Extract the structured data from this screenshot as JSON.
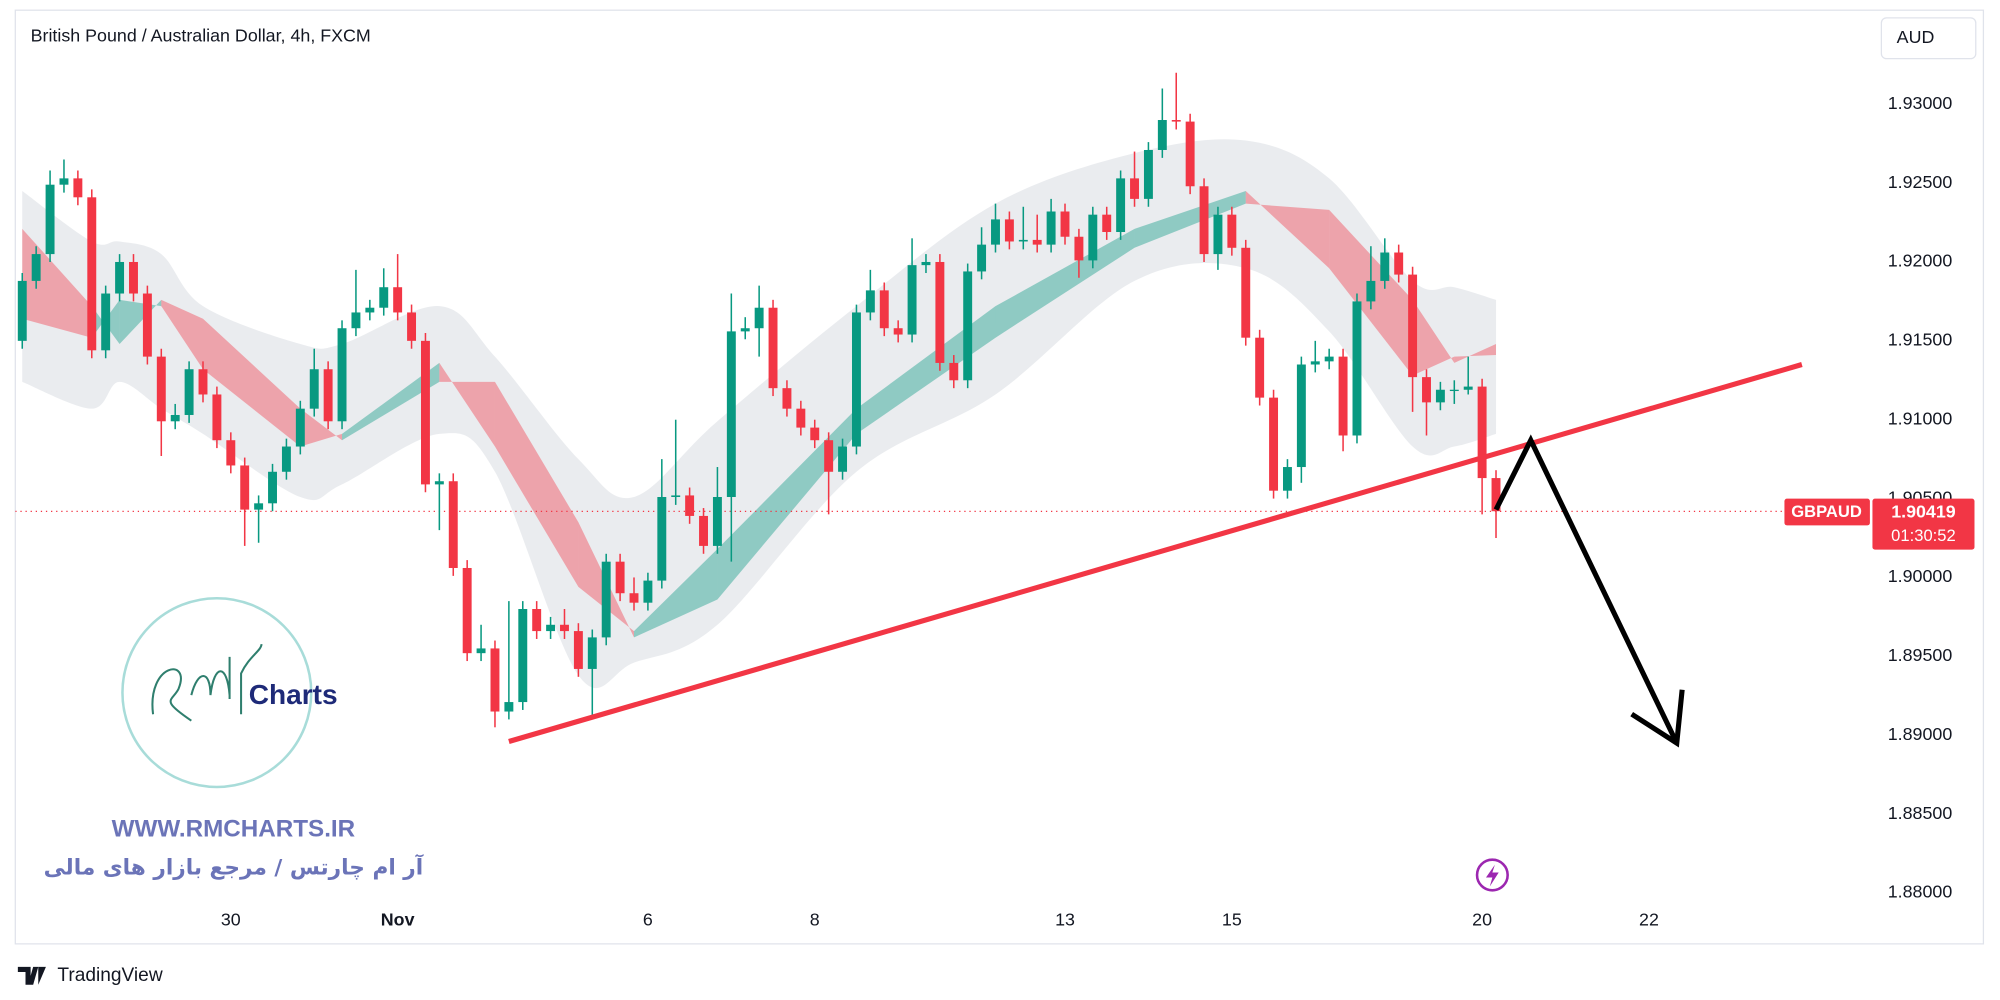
{
  "chart_data": {
    "type": "candlestick",
    "title": "British Pound / Australian Dollar, 4h, FXCM",
    "currency": "AUD",
    "symbol": "GBPAUD",
    "last_price": 1.90419,
    "countdown": "01:30:52",
    "up_color": "#089981",
    "down_color": "#f23645",
    "ylim": [
      1.8796,
      1.9358
    ],
    "yticks": [
      {
        "value": 1.88,
        "label": "1.88000"
      },
      {
        "value": 1.885,
        "label": "1.88500"
      },
      {
        "value": 1.89,
        "label": "1.89000"
      },
      {
        "value": 1.895,
        "label": "1.89500"
      },
      {
        "value": 1.9,
        "label": "1.90000"
      },
      {
        "value": 1.905,
        "label": "1.90500"
      },
      {
        "value": 1.91,
        "label": "1.91000"
      },
      {
        "value": 1.915,
        "label": "1.91500"
      },
      {
        "value": 1.92,
        "label": "1.92000"
      },
      {
        "value": 1.925,
        "label": "1.92500"
      },
      {
        "value": 1.93,
        "label": "1.93000"
      }
    ],
    "xlim": [
      -0.5,
      132.8
    ],
    "xticks": [
      {
        "value": 15,
        "label": "30"
      },
      {
        "value": 27,
        "label": "Nov"
      },
      {
        "value": 45,
        "label": "6"
      },
      {
        "value": 57,
        "label": "8"
      },
      {
        "value": 75,
        "label": "13"
      },
      {
        "value": 87,
        "label": "15"
      },
      {
        "value": 105,
        "label": "20"
      },
      {
        "value": 117,
        "label": "22"
      }
    ],
    "open": [
      1.915,
      1.9188,
      1.9205,
      1.9249,
      1.9253,
      1.9241,
      1.9144,
      1.918,
      1.92,
      1.918,
      1.914,
      1.9099,
      1.9103,
      1.9132,
      1.9116,
      1.9087,
      1.9071,
      1.9043,
      1.9047,
      1.9067,
      1.9083,
      1.9107,
      1.9132,
      1.9099,
      1.9158,
      1.9168,
      1.9171,
      1.9184,
      1.9168,
      1.915,
      1.9059,
      1.9061,
      1.9006,
      1.8952,
      1.8955,
      1.8915,
      1.8921,
      1.898,
      1.8966,
      1.897,
      1.8966,
      1.8942,
      1.8962,
      1.901,
      1.899,
      1.8984,
      1.8998,
      1.9051,
      1.9052,
      1.9039,
      1.902,
      1.9051,
      1.9156,
      1.9158,
      1.9171,
      1.912,
      1.9107,
      1.9095,
      1.9087,
      1.9067,
      1.9083,
      1.9168,
      1.9182,
      1.9158,
      1.9154,
      1.9198,
      1.92,
      1.9136,
      1.9125,
      1.9194,
      1.9211,
      1.9227,
      1.9213,
      1.9214,
      1.9211,
      1.9232,
      1.9216,
      1.9201,
      1.923,
      1.9219,
      1.9253,
      1.924,
      1.9271,
      1.929,
      1.9289,
      1.9248,
      1.9205,
      1.923,
      1.9209,
      1.9152,
      1.9114,
      1.9055,
      1.907,
      1.9135,
      1.9137,
      1.914,
      1.909,
      1.9175,
      1.9188,
      1.9206,
      1.9192,
      1.9127,
      1.9111,
      1.9119,
      1.9119,
      1.9121,
      1.9063
    ],
    "high": [
      1.9193,
      1.921,
      1.9258,
      1.9265,
      1.9258,
      1.9246,
      1.9185,
      1.9205,
      1.9205,
      1.9185,
      1.9145,
      1.911,
      1.9137,
      1.9137,
      1.9121,
      1.9092,
      1.9076,
      1.9052,
      1.9072,
      1.9088,
      1.9112,
      1.9145,
      1.9137,
      1.9163,
      1.9195,
      1.9176,
      1.9196,
      1.9205,
      1.9173,
      1.9155,
      1.9066,
      1.9066,
      1.9011,
      1.897,
      1.896,
      1.8985,
      1.8985,
      1.8985,
      1.8975,
      1.898,
      1.8971,
      1.8967,
      1.9015,
      1.9015,
      1.9,
      1.9003,
      1.9075,
      1.91,
      1.9057,
      1.9044,
      1.907,
      1.918,
      1.9165,
      1.9185,
      1.9176,
      1.9125,
      1.9112,
      1.91,
      1.9092,
      1.9088,
      1.9173,
      1.9195,
      1.9187,
      1.9163,
      1.9215,
      1.9205,
      1.9205,
      1.9141,
      1.9199,
      1.9222,
      1.9237,
      1.9232,
      1.9235,
      1.923,
      1.924,
      1.9237,
      1.9221,
      1.9235,
      1.9235,
      1.9258,
      1.927,
      1.9276,
      1.931,
      1.932,
      1.9294,
      1.9253,
      1.9235,
      1.9235,
      1.9214,
      1.9157,
      1.9119,
      1.9075,
      1.914,
      1.915,
      1.9145,
      1.9145,
      1.918,
      1.921,
      1.9215,
      1.9211,
      1.9197,
      1.9132,
      1.9124,
      1.9125,
      1.914,
      1.9126,
      1.9068
    ],
    "low": [
      1.9145,
      1.9183,
      1.92,
      1.9244,
      1.9236,
      1.9139,
      1.9139,
      1.9175,
      1.9175,
      1.9135,
      1.9077,
      1.9094,
      1.9098,
      1.9111,
      1.9082,
      1.9066,
      1.902,
      1.9022,
      1.9042,
      1.9062,
      1.9078,
      1.9102,
      1.9094,
      1.9094,
      1.9153,
      1.9163,
      1.9166,
      1.9163,
      1.9145,
      1.9054,
      1.903,
      1.9001,
      1.8947,
      1.8947,
      1.8905,
      1.891,
      1.8916,
      1.8961,
      1.8961,
      1.8961,
      1.8937,
      1.891,
      1.8957,
      1.8985,
      1.8979,
      1.8979,
      1.8993,
      1.9046,
      1.9034,
      1.9015,
      1.9015,
      1.901,
      1.9151,
      1.914,
      1.9115,
      1.9102,
      1.909,
      1.9082,
      1.904,
      1.9062,
      1.9078,
      1.9163,
      1.9153,
      1.9149,
      1.9149,
      1.9193,
      1.9131,
      1.912,
      1.912,
      1.9189,
      1.9206,
      1.9208,
      1.9208,
      1.9206,
      1.9206,
      1.9211,
      1.919,
      1.9196,
      1.9214,
      1.9214,
      1.9235,
      1.9235,
      1.9266,
      1.9284,
      1.9243,
      1.92,
      1.9195,
      1.9204,
      1.9147,
      1.9109,
      1.905,
      1.905,
      1.906,
      1.913,
      1.9132,
      1.908,
      1.9085,
      1.917,
      1.9183,
      1.9187,
      1.9105,
      1.909,
      1.9106,
      1.911,
      1.9116,
      1.904,
      1.9025
    ],
    "close": [
      1.9188,
      1.9205,
      1.9249,
      1.9253,
      1.9241,
      1.9144,
      1.918,
      1.92,
      1.918,
      1.914,
      1.9099,
      1.9103,
      1.9132,
      1.9116,
      1.9087,
      1.9071,
      1.9043,
      1.9047,
      1.9067,
      1.9083,
      1.9107,
      1.9132,
      1.9099,
      1.9158,
      1.9168,
      1.9171,
      1.9184,
      1.9168,
      1.915,
      1.9059,
      1.9061,
      1.9006,
      1.8952,
      1.8955,
      1.8915,
      1.8921,
      1.898,
      1.8966,
      1.897,
      1.8966,
      1.8942,
      1.8962,
      1.901,
      1.899,
      1.8984,
      1.8998,
      1.9051,
      1.9052,
      1.9039,
      1.902,
      1.9051,
      1.9156,
      1.9158,
      1.9171,
      1.912,
      1.9107,
      1.9095,
      1.9087,
      1.9067,
      1.9083,
      1.9168,
      1.9182,
      1.9158,
      1.9154,
      1.9198,
      1.92,
      1.9136,
      1.9125,
      1.9194,
      1.9211,
      1.9227,
      1.9213,
      1.9214,
      1.9211,
      1.9232,
      1.9216,
      1.9201,
      1.923,
      1.9219,
      1.9253,
      1.924,
      1.9271,
      1.929,
      1.9289,
      1.9248,
      1.9205,
      1.923,
      1.9209,
      1.9152,
      1.9114,
      1.9055,
      1.907,
      1.9135,
      1.9137,
      1.914,
      1.909,
      1.9175,
      1.9188,
      1.9206,
      1.9192,
      1.9127,
      1.9111,
      1.9119,
      1.9119,
      1.9121,
      1.9063,
      1.9042
    ],
    "ribbon": {
      "x": [
        0,
        5,
        7,
        10,
        13,
        20,
        23,
        30,
        34,
        40,
        44,
        50,
        60,
        70,
        80,
        88,
        94,
        100,
        103,
        106
      ],
      "fast": [
        1.9164,
        1.9152,
        1.9176,
        1.9172,
        1.9132,
        1.9083,
        1.9091,
        1.9136,
        1.9083,
        1.8994,
        1.8966,
        1.9018,
        1.9107,
        1.9172,
        1.9221,
        1.9245,
        1.9196,
        1.9128,
        1.914,
        1.9141
      ],
      "slow": [
        1.9221,
        1.9172,
        1.9148,
        1.9176,
        1.9164,
        1.9107,
        1.9087,
        1.9124,
        1.9124,
        1.9035,
        1.8962,
        1.8986,
        1.9091,
        1.9152,
        1.9209,
        1.9237,
        1.9233,
        1.9176,
        1.9136,
        1.9148
      ],
      "upper": [
        1.9245,
        1.9213,
        1.9213,
        1.9205,
        1.9172,
        1.9148,
        1.9148,
        1.9172,
        1.914,
        1.9075,
        1.9051,
        1.9099,
        1.9172,
        1.9237,
        1.9269,
        1.9277,
        1.9253,
        1.9188,
        1.9184,
        1.9176
      ],
      "lower": [
        1.9124,
        1.9107,
        1.9124,
        1.9107,
        1.9091,
        1.9051,
        1.9059,
        1.9091,
        1.9067,
        1.8938,
        1.8946,
        1.897,
        1.9067,
        1.9116,
        1.9188,
        1.9196,
        1.9156,
        1.9083,
        1.9083,
        1.9091
      ]
    },
    "trendline": {
      "x": [
        35,
        128
      ],
      "y": [
        1.8896,
        1.9135
      ],
      "color": "#f23645"
    },
    "arrow": {
      "x": [
        106,
        108.5,
        119
      ],
      "y": [
        1.9043,
        1.9087,
        1.8895
      ],
      "color": "#000000"
    }
  },
  "watermark": {
    "logo_text": "Charts",
    "url": "WWW.RMCHARTS.IR",
    "tagline": "آر ام چارتس / مرجع بازار های مالی"
  },
  "footer": "TradingView"
}
